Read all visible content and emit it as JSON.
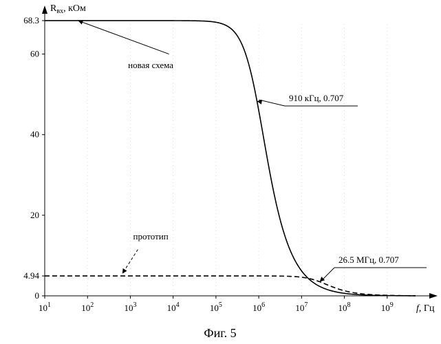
{
  "chart_data": {
    "type": "line",
    "xscale": "log",
    "xlim": [
      10,
      10000000000
    ],
    "ylim": [
      0,
      70
    ],
    "ylabel_main": "R",
    "ylabel_sub": "вх",
    "ylabel_unit": ", кОм",
    "xlabel_italic": "f",
    "xlabel_unit": ", Гц",
    "xtick_values": [
      10,
      100,
      1000,
      10000,
      100000,
      1000000,
      10000000,
      100000000,
      1000000000
    ],
    "xtick_labels": [
      {
        "base": "10",
        "exp": "1"
      },
      {
        "base": "10",
        "exp": "2"
      },
      {
        "base": "10",
        "exp": "3"
      },
      {
        "base": "10",
        "exp": "4"
      },
      {
        "base": "10",
        "exp": "5"
      },
      {
        "base": "10",
        "exp": "6"
      },
      {
        "base": "10",
        "exp": "7"
      },
      {
        "base": "10",
        "exp": "8"
      },
      {
        "base": "10",
        "exp": "9"
      }
    ],
    "ytick_values": [
      0,
      4.94,
      20,
      40,
      60,
      68.3
    ],
    "ytick_labels": [
      "0",
      "4.94",
      "20",
      "40",
      "60",
      "68.3"
    ],
    "series": [
      {
        "name": "новая схема",
        "style": "solid",
        "r0": 68.3,
        "cutoff_hz": 910000
      },
      {
        "name": "прототип",
        "style": "dashed",
        "r0": 4.94,
        "cutoff_hz": 26500000
      }
    ],
    "annotations": [
      {
        "text": "910 кГц, 0.707",
        "x": 910000,
        "y": 48.3
      },
      {
        "text": "26.5 МГц, 0.707",
        "x": 26500000,
        "y": 3.49
      }
    ],
    "caption": "Фиг. 5"
  }
}
